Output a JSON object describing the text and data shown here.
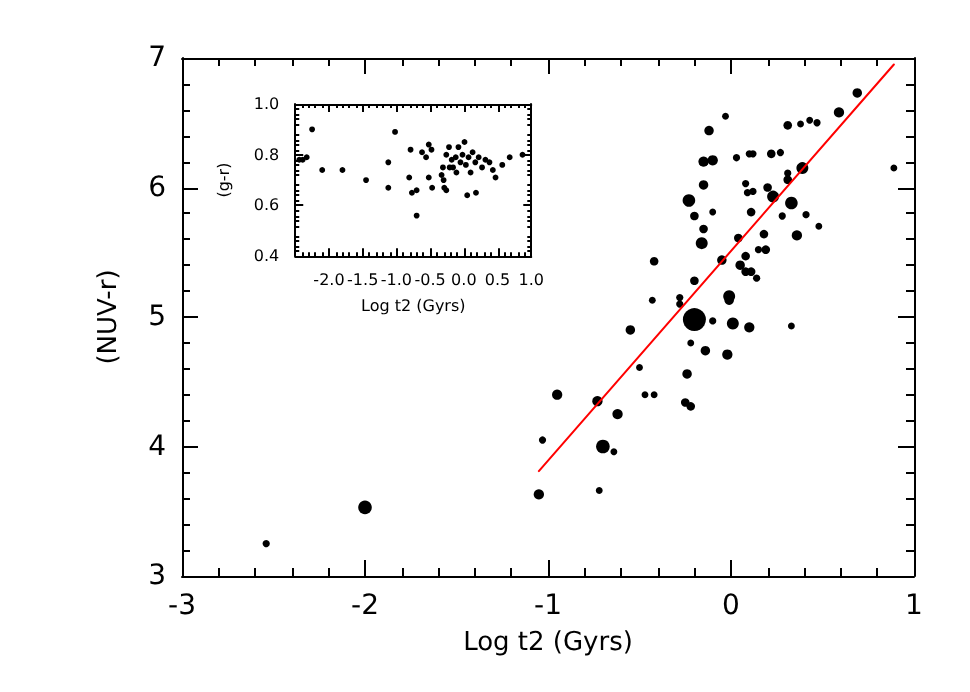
{
  "chart_data": [
    {
      "type": "bubble",
      "xlabel": "Log t2 (Gyrs)",
      "ylabel": "(NUV-r)",
      "xlim": [
        -3,
        1
      ],
      "xticks": [
        -3,
        -2,
        -1,
        0,
        1
      ],
      "ylim": [
        3,
        7
      ],
      "yticks": [
        3,
        4,
        5,
        6,
        7
      ],
      "grid": false,
      "series": [
        {
          "color": "#000000",
          "marker": "circle",
          "x": [
            -2.54,
            -2.0,
            -1.05,
            -1.03,
            -0.95,
            -0.73,
            -0.7,
            -0.72,
            -0.64,
            -0.62,
            -0.55,
            -0.5,
            -0.47,
            -0.42,
            -0.43,
            -0.42,
            -0.28,
            -0.28,
            -0.2,
            -0.22,
            -0.24,
            -0.25,
            -0.22,
            -0.14,
            -0.1,
            -0.2,
            -0.23,
            -0.2,
            -0.16,
            -0.15,
            -0.15,
            -0.15,
            -0.1,
            -0.12,
            -0.03,
            -0.1,
            -0.05,
            -0.01,
            -0.01,
            0.01,
            -0.02,
            0.1,
            0.03,
            0.04,
            0.05,
            0.08,
            0.11,
            0.14,
            0.08,
            0.09,
            0.11,
            0.08,
            0.1,
            0.12,
            0.12,
            0.15,
            0.18,
            0.19,
            0.2,
            0.23,
            0.22,
            0.27,
            0.28,
            0.31,
            0.31,
            0.33,
            0.36,
            0.39,
            0.31,
            0.38,
            0.43,
            0.47,
            0.41,
            0.48,
            0.33,
            0.59,
            0.69,
            0.89
          ],
          "values": [
            3.25,
            3.53,
            3.63,
            4.05,
            4.4,
            4.35,
            4.0,
            3.66,
            3.96,
            4.25,
            4.9,
            4.61,
            4.4,
            4.4,
            5.13,
            5.43,
            5.15,
            5.1,
            4.98,
            4.8,
            4.56,
            4.34,
            4.31,
            4.74,
            4.97,
            5.28,
            5.9,
            5.78,
            5.57,
            5.68,
            6.02,
            6.2,
            6.21,
            6.44,
            6.55,
            5.81,
            5.44,
            5.16,
            5.13,
            4.95,
            4.71,
            4.92,
            6.23,
            5.61,
            5.4,
            5.35,
            5.35,
            5.3,
            6.03,
            5.96,
            5.81,
            5.47,
            6.26,
            6.26,
            5.97,
            5.52,
            5.64,
            5.52,
            6.0,
            5.93,
            6.26,
            6.27,
            5.78,
            6.11,
            6.06,
            5.88,
            5.63,
            6.15,
            6.48,
            6.49,
            6.52,
            6.5,
            5.79,
            5.7,
            4.93,
            6.58,
            6.73,
            6.15
          ],
          "sizes": [
            0.1,
            0.35,
            0.2,
            0.1,
            0.2,
            0.2,
            0.35,
            0.09,
            0.09,
            0.2,
            0.17,
            0.09,
            0.09,
            0.09,
            0.09,
            0.14,
            0.1,
            0.1,
            1,
            0.09,
            0.17,
            0.14,
            0.14,
            0.17,
            0.1,
            0.14,
            0.3,
            0.14,
            0.27,
            0.14,
            0.17,
            0.2,
            0.2,
            0.17,
            0.09,
            0.09,
            0.17,
            0.27,
            0.17,
            0.27,
            0.2,
            0.2,
            0.1,
            0.14,
            0.17,
            0.14,
            0.14,
            0.1,
            0.1,
            0.1,
            0.14,
            0.14,
            0.1,
            0.1,
            0.1,
            0.1,
            0.14,
            0.14,
            0.14,
            0.27,
            0.14,
            0.1,
            0.1,
            0.1,
            0.14,
            0.3,
            0.2,
            0.27,
            0.14,
            0.09,
            0.09,
            0.1,
            0.1,
            0.09,
            0.09,
            0.2,
            0.17,
            0.09
          ]
        },
        {
          "type": "line",
          "color": "#ff0000",
          "marker": "none",
          "x": [
            -1.05,
            0.89
          ],
          "values": [
            3.81,
            6.95
          ]
        }
      ]
    },
    {
      "type": "scatter",
      "xlabel": "Log t2 (Gyrs)",
      "ylabel": "(g-r)",
      "xlim": [
        -2.5,
        1.0
      ],
      "xticks": [
        {
          "value": -2,
          "label": "-2.0"
        },
        {
          "value": -1.5,
          "label": "-1.5"
        },
        {
          "value": -1,
          "label": "-1.0"
        },
        {
          "value": -0.5,
          "label": "-0.5"
        },
        {
          "value": 0,
          "label": "0.0"
        },
        {
          "value": 0.5,
          "label": "0.5"
        },
        {
          "value": 1,
          "label": "1.0"
        }
      ],
      "ylim": [
        0.4,
        1.0
      ],
      "yticks": [
        0.4,
        0.6,
        0.8,
        {
          "value": 1,
          "label": "1.0"
        }
      ],
      "grid": false,
      "marker": "circle",
      "series": [
        {
          "color": "#000000",
          "x": [
            -2.44,
            -2.39,
            -2.33,
            -2.25,
            -2.1,
            -1.8,
            -1.45,
            -1.12,
            -1.12,
            -1.02,
            -0.79,
            -0.81,
            -0.77,
            -0.7,
            -0.7,
            -0.62,
            -0.56,
            -0.52,
            -0.48,
            -0.52,
            -0.47,
            -0.31,
            -0.33,
            -0.29,
            -0.26,
            -0.22,
            -0.18,
            -0.16,
            -0.12,
            -0.08,
            -0.05,
            -0.02,
            0.01,
            0.03,
            0.07,
            0.1,
            0.13,
            0.17,
            0.22,
            0.27,
            0.32,
            0.38,
            0.43,
            0.47,
            0.57,
            0.68,
            0.87,
            0.05,
            0.18,
            -0.26,
            -0.11,
            -0.21,
            -0.3
          ],
          "values": [
            0.78,
            0.78,
            0.79,
            0.9,
            0.74,
            0.74,
            0.7,
            0.77,
            0.67,
            0.89,
            0.82,
            0.71,
            0.65,
            0.66,
            0.56,
            0.81,
            0.79,
            0.84,
            0.82,
            0.71,
            0.67,
            0.75,
            0.72,
            0.67,
            0.8,
            0.83,
            0.78,
            0.75,
            0.79,
            0.83,
            0.77,
            0.8,
            0.85,
            0.76,
            0.79,
            0.73,
            0.81,
            0.77,
            0.79,
            0.75,
            0.78,
            0.77,
            0.74,
            0.71,
            0.76,
            0.79,
            0.8,
            0.64,
            0.65,
            0.66,
            0.73,
            0.75,
            0.7
          ]
        }
      ]
    }
  ]
}
